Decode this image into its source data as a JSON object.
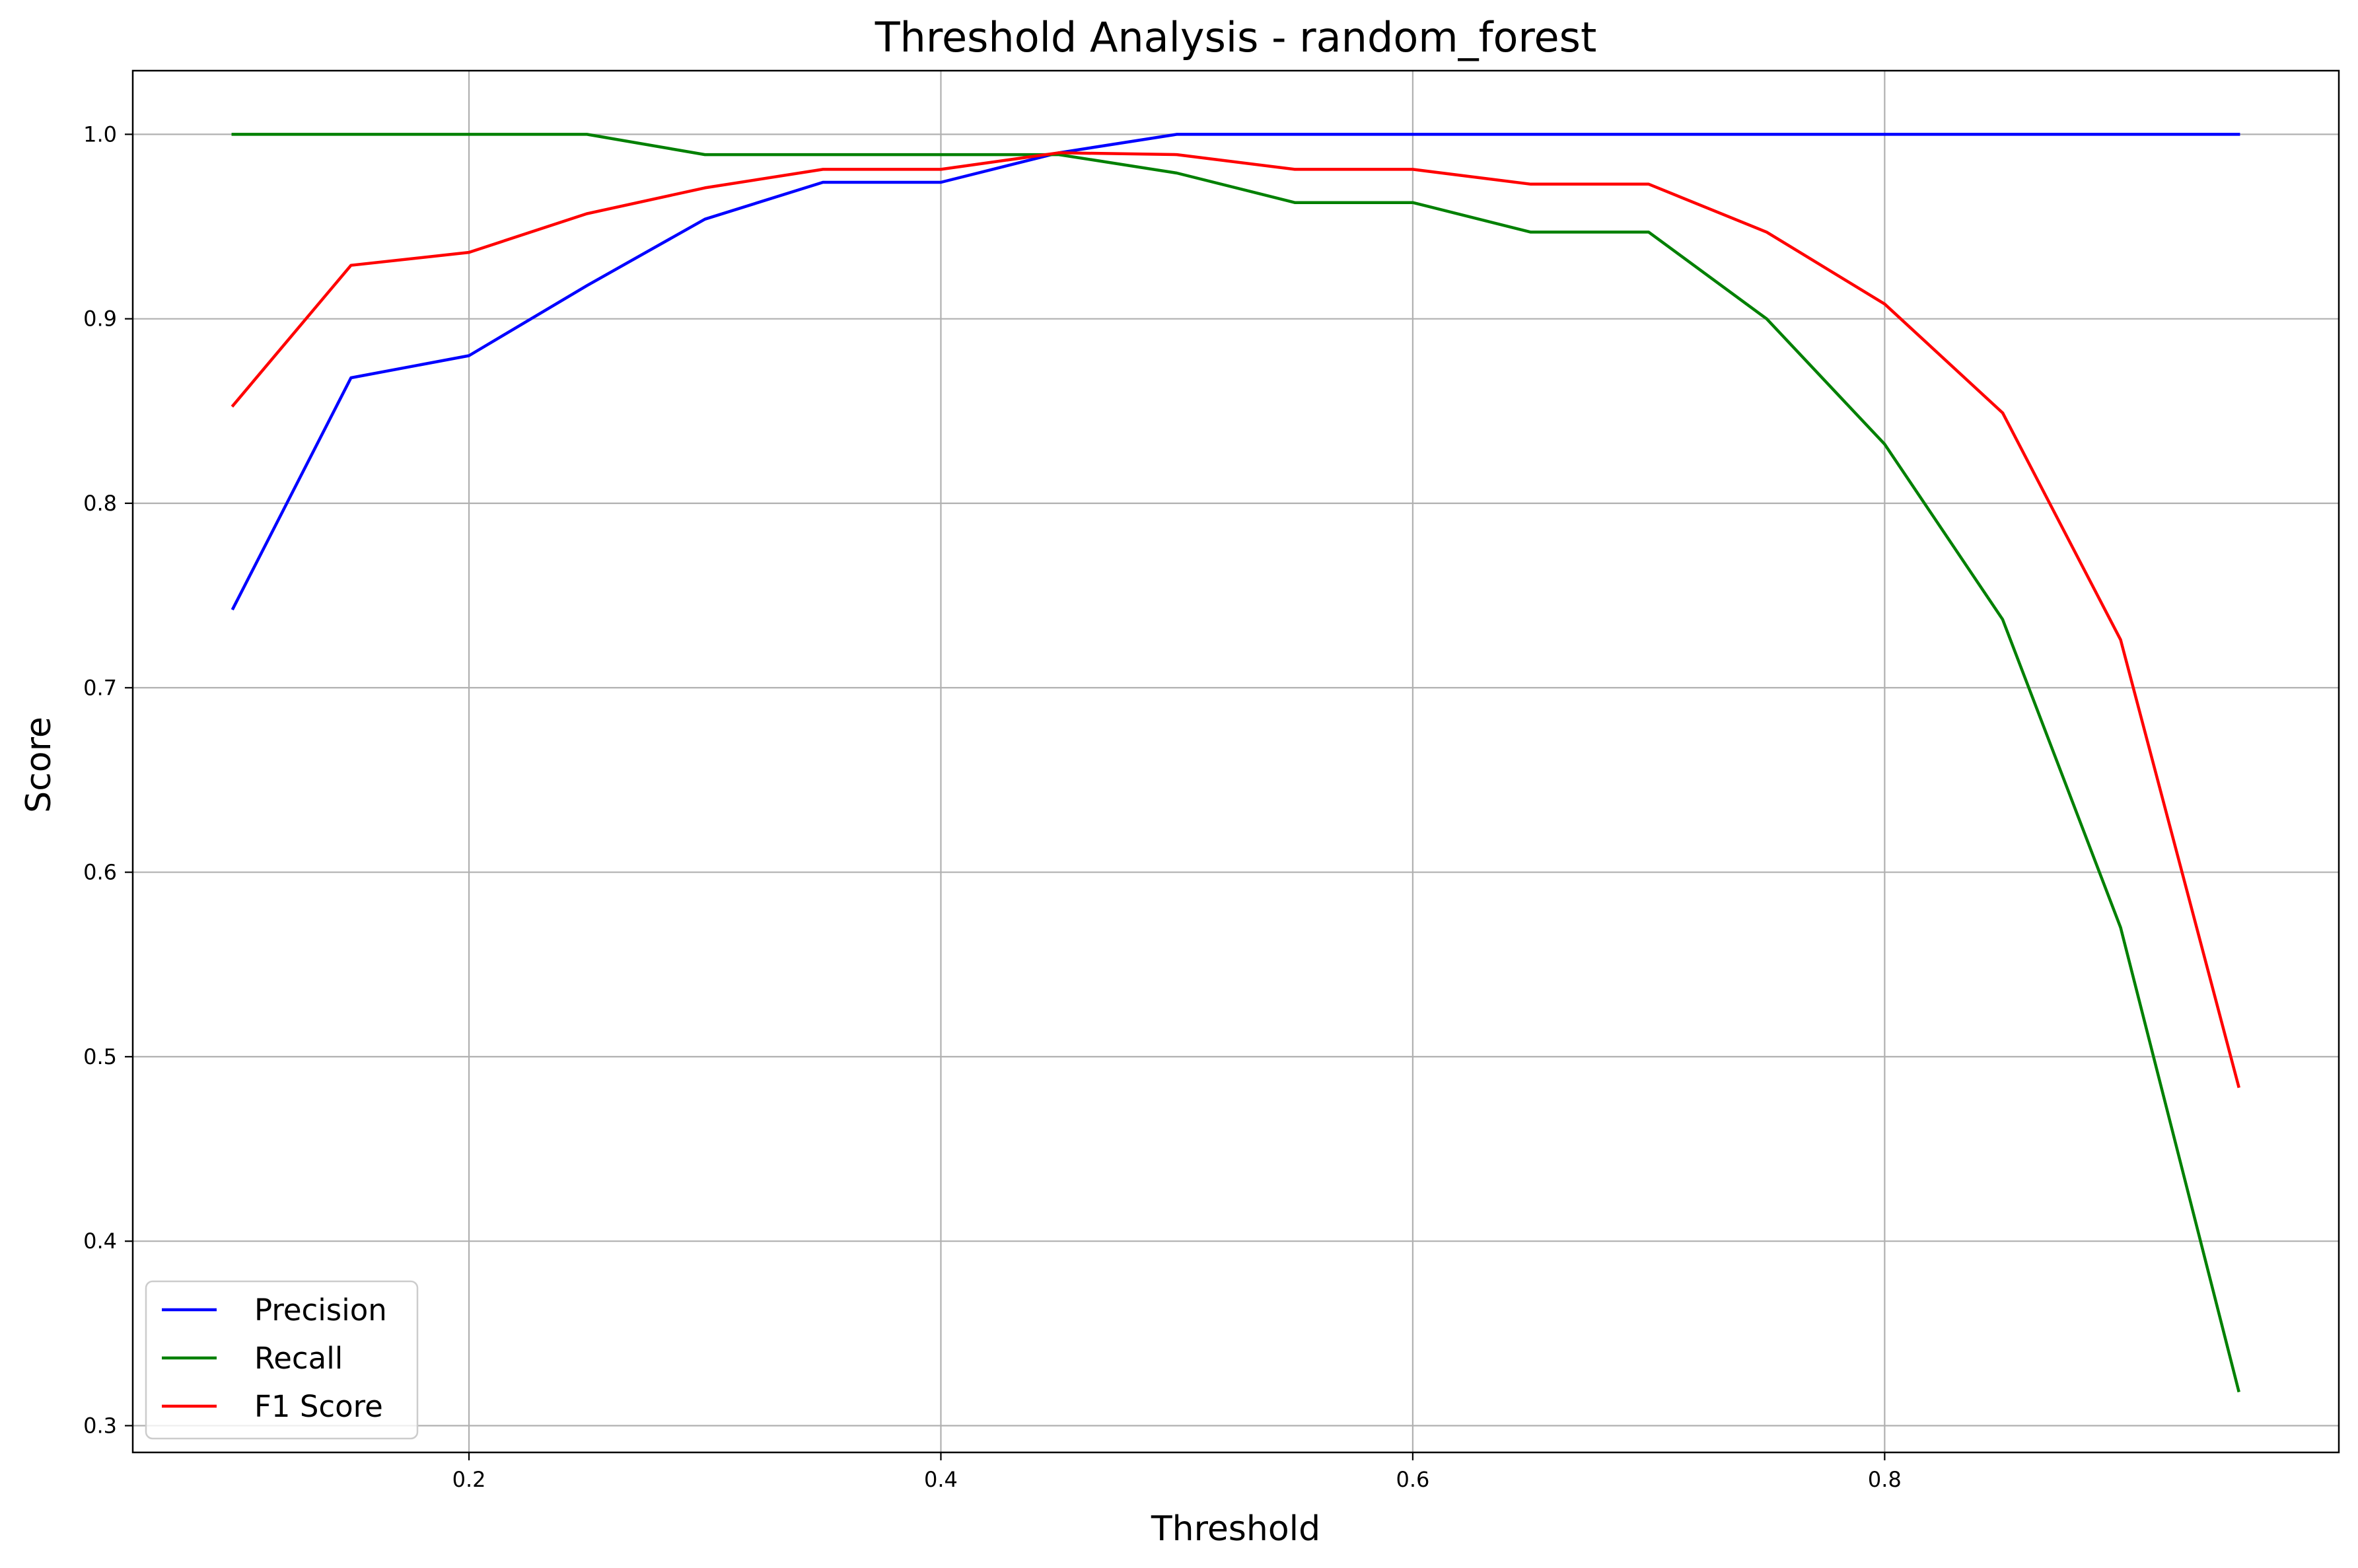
{
  "chart_data": {
    "type": "line",
    "title": "Threshold Analysis - random_forest",
    "xlabel": "Threshold",
    "ylabel": "Score",
    "xlim": [
      0.0575,
      0.9925
    ],
    "ylim": [
      0.2855,
      1.0345
    ],
    "xticks": [
      0.2,
      0.4,
      0.6,
      0.8
    ],
    "xtick_labels": [
      "0.2",
      "0.4",
      "0.6",
      "0.8"
    ],
    "yticks": [
      0.3,
      0.4,
      0.5,
      0.6,
      0.7,
      0.8,
      0.9,
      1.0
    ],
    "ytick_labels": [
      "0.3",
      "0.4",
      "0.5",
      "0.6",
      "0.7",
      "0.8",
      "0.9",
      "1.0"
    ],
    "grid": true,
    "legend_position": "lower-left",
    "x": [
      0.1,
      0.15,
      0.2,
      0.25,
      0.3,
      0.35,
      0.4,
      0.45,
      0.5,
      0.55,
      0.6,
      0.65,
      0.7,
      0.75,
      0.8,
      0.85,
      0.9,
      0.95
    ],
    "series": [
      {
        "name": "Precision",
        "color": "#0000ff",
        "values": [
          0.743,
          0.868,
          0.88,
          0.918,
          0.954,
          0.974,
          0.974,
          0.99,
          1.0,
          1.0,
          1.0,
          1.0,
          1.0,
          1.0,
          1.0,
          1.0,
          1.0,
          1.0
        ]
      },
      {
        "name": "Recall",
        "color": "#008000",
        "values": [
          1.0,
          1.0,
          1.0,
          1.0,
          0.989,
          0.989,
          0.989,
          0.989,
          0.979,
          0.963,
          0.963,
          0.947,
          0.947,
          0.9,
          0.832,
          0.737,
          0.57,
          0.319
        ]
      },
      {
        "name": "F1 Score",
        "color": "#ff0000",
        "values": [
          0.853,
          0.929,
          0.936,
          0.957,
          0.971,
          0.981,
          0.981,
          0.99,
          0.989,
          0.981,
          0.981,
          0.973,
          0.973,
          0.947,
          0.908,
          0.849,
          0.726,
          0.484
        ]
      }
    ]
  }
}
